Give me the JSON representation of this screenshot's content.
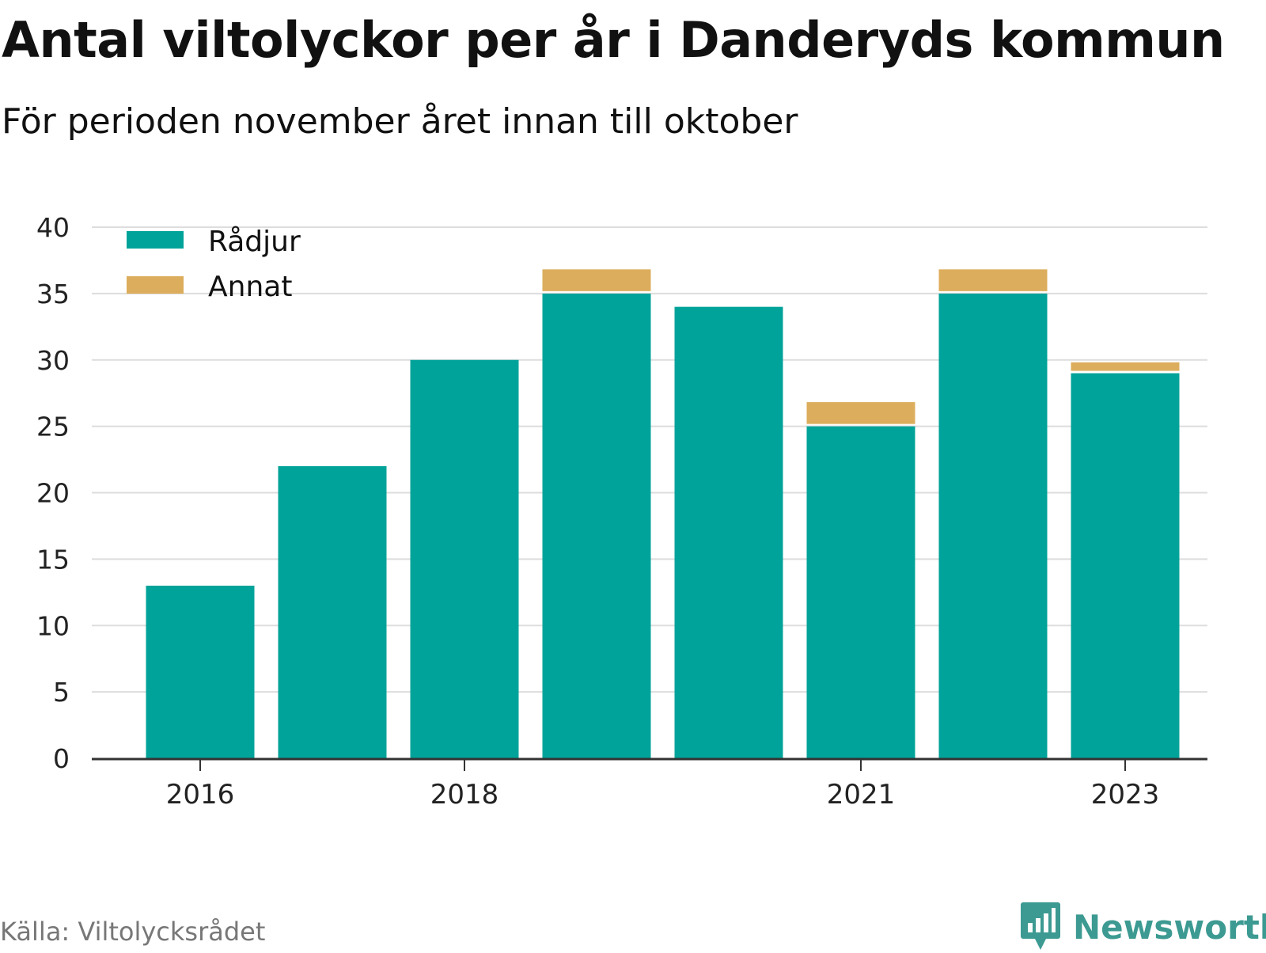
{
  "title": "Antal viltolyckor per år i Danderyds kommun",
  "subtitle": "För perioden november året innan till oktober",
  "source": "Källa: Viltolycksrådet",
  "brand": {
    "name": "Newsworthy",
    "icon": "bar-chart-speech-bubble-icon",
    "color": "#3c9a92"
  },
  "chart_data": {
    "type": "bar",
    "stacked": true,
    "categories": [
      "2016",
      "2017",
      "2018",
      "2019",
      "2020",
      "2021",
      "2022",
      "2023"
    ],
    "x_tick_labels": [
      "2016",
      "2018",
      "2021",
      "2023"
    ],
    "series": [
      {
        "name": "Rådjur",
        "color": "#00a399",
        "values": [
          13,
          22,
          30,
          35,
          34,
          25,
          35,
          29
        ]
      },
      {
        "name": "Annat",
        "color": "#dcad5c",
        "values": [
          0,
          0,
          0,
          2,
          0,
          2,
          2,
          1
        ]
      }
    ],
    "ylim": [
      0,
      40
    ],
    "yticks": [
      0,
      5,
      10,
      15,
      20,
      25,
      30,
      35,
      40
    ],
    "grid": true,
    "legend_position": "top-left",
    "xlabel": "",
    "ylabel": ""
  }
}
